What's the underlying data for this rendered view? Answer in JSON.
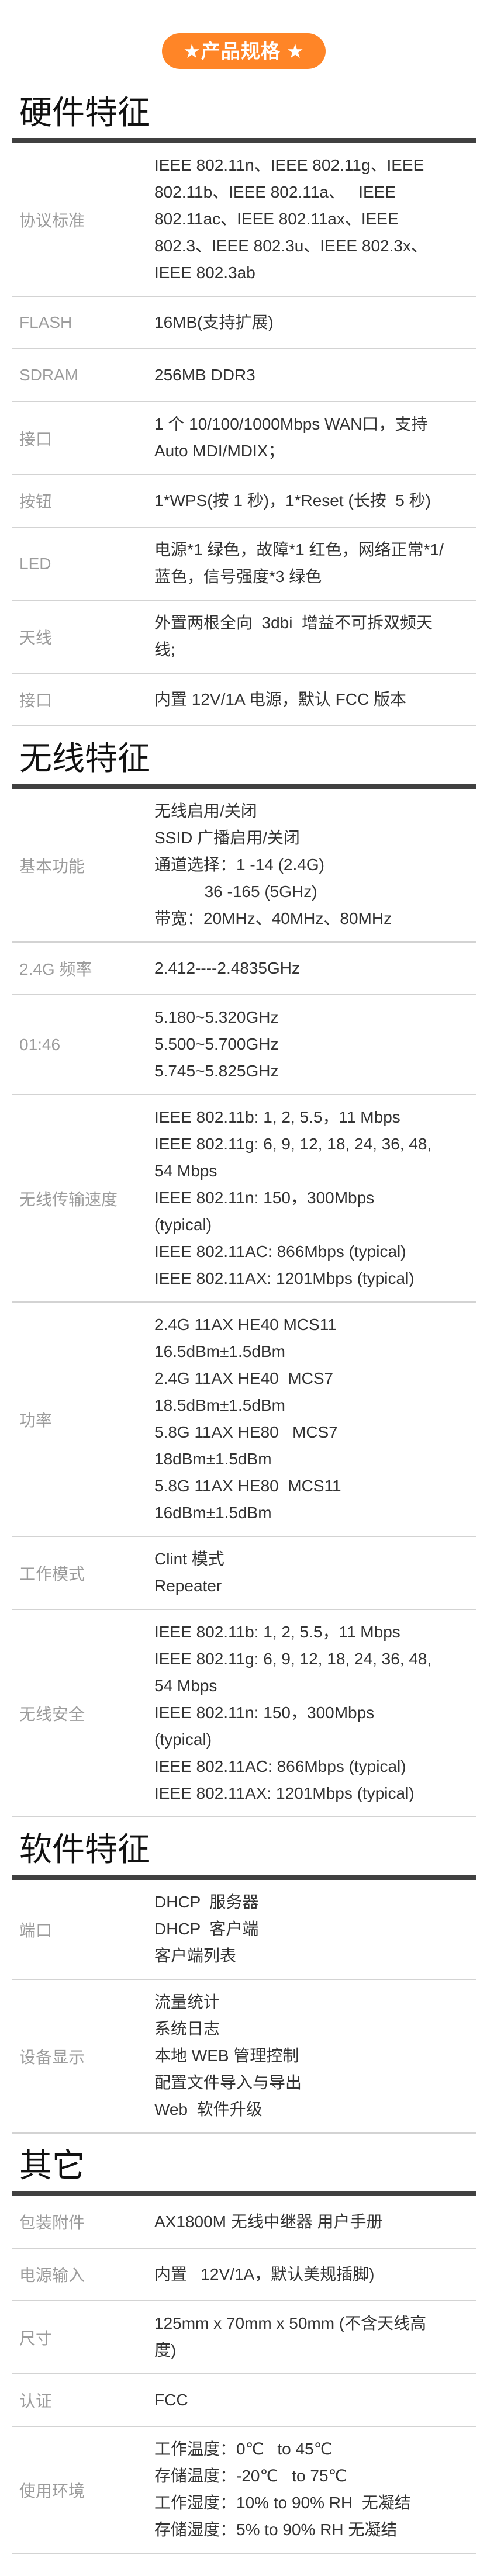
{
  "badge": "★产品规格 ★",
  "sections": [
    {
      "title": "硬件特征",
      "rows": [
        {
          "label": "协议标准",
          "lines": [
            "IEEE 802.11n、IEEE 802.11g、IEEE",
            "802.11b、IEEE 802.11a、   IEEE",
            "802.11ac、IEEE 802.11ax、IEEE",
            "802.3、IEEE 802.3u、IEEE 802.3x、",
            "IEEE 802.3ab"
          ]
        },
        {
          "label": "FLASH",
          "lines": [
            "16MB(支持扩展)"
          ]
        },
        {
          "label": "SDRAM",
          "lines": [
            "256MB DDR3"
          ]
        },
        {
          "label": "接口",
          "lines": [
            "1 个 10/100/1000Mbps WAN口，支持",
            "Auto MDI/MDIX；"
          ]
        },
        {
          "label": "按钮",
          "lines": [
            "1*WPS(按 1 秒)，1*Reset (长按  5 秒)"
          ]
        },
        {
          "label": "LED",
          "lines": [
            "电源*1 绿色，故障*1 红色，网络正常*1/",
            "蓝色，信号强度*3 绿色"
          ]
        },
        {
          "label": "天线",
          "lines": [
            "外置两根全向  3dbi  增益不可拆双频天",
            "线;"
          ]
        },
        {
          "label": "接口",
          "lines": [
            "内置 12V/1A 电源，默认 FCC 版本"
          ]
        }
      ]
    },
    {
      "title": "无线特征",
      "rows": [
        {
          "label": "基本功能",
          "lines": [
            "无线启用/关闭",
            "SSID 广播启用/关闭",
            "通道选择：1 -14 (2.4G)",
            "           36 -165 (5GHz)",
            "带宽：20MHz、40MHz、80MHz"
          ]
        },
        {
          "label": "2.4G 频率",
          "lines": [
            "2.412----2.4835GHz"
          ]
        },
        {
          "label": "01:46",
          "lines": [
            "5.180~5.320GHz",
            "5.500~5.700GHz",
            "5.745~5.825GHz"
          ]
        },
        {
          "label": "无线传输速度",
          "lines": [
            "IEEE 802.11b: 1, 2, 5.5，11 Mbps",
            "IEEE 802.11g: 6, 9, 12, 18, 24, 36, 48,",
            "54 Mbps",
            "IEEE 802.11n: 150，300Mbps",
            "(typical)",
            "IEEE 802.11AC: 866Mbps (typical)",
            "IEEE 802.11AX: 1201Mbps (typical)"
          ]
        },
        {
          "label": "功率",
          "lines": [
            "2.4G 11AX HE40 MCS11",
            "16.5dBm±1.5dBm",
            "2.4G 11AX HE40  MCS7",
            "18.5dBm±1.5dBm",
            "5.8G 11AX HE80   MCS7",
            "18dBm±1.5dBm",
            "5.8G 11AX HE80  MCS11",
            "16dBm±1.5dBm"
          ]
        },
        {
          "label": "工作模式",
          "lines": [
            "Clint 模式",
            "Repeater"
          ]
        },
        {
          "label": "无线安全",
          "lines": [
            "IEEE 802.11b: 1, 2, 5.5，11 Mbps",
            "IEEE 802.11g: 6, 9, 12, 18, 24, 36, 48,",
            "54 Mbps",
            "IEEE 802.11n: 150，300Mbps",
            "(typical)",
            "IEEE 802.11AC: 866Mbps (typical)",
            "IEEE 802.11AX: 1201Mbps (typical)"
          ]
        }
      ]
    },
    {
      "title": "软件特征",
      "rows": [
        {
          "label": "端口",
          "lines": [
            "DHCP  服务器",
            "DHCP  客户端",
            "客户端列表"
          ]
        },
        {
          "label": "设备显示",
          "lines": [
            "流量统计",
            "系统日志",
            "本地 WEB 管理控制",
            "配置文件导入与导出",
            "Web  软件升级"
          ]
        }
      ]
    },
    {
      "title": "其它",
      "rows": [
        {
          "label": "包装附件",
          "lines": [
            "AX1800M 无线中继器 用户手册"
          ]
        },
        {
          "label": "电源输入",
          "lines": [
            "内置   12V/1A，默认美规插脚)"
          ]
        },
        {
          "label": "尺寸",
          "lines": [
            "125mm x 70mm x 50mm (不含天线高",
            "度)"
          ]
        },
        {
          "label": "认证",
          "lines": [
            "FCC"
          ]
        },
        {
          "label": "使用环境",
          "lines": [
            "工作温度：0℃   to 45℃",
            "存储温度：-20℃   to 75℃",
            "工作湿度：10% to 90% RH  无凝结",
            "存储湿度：5% to 90% RH 无凝结"
          ]
        }
      ]
    }
  ]
}
